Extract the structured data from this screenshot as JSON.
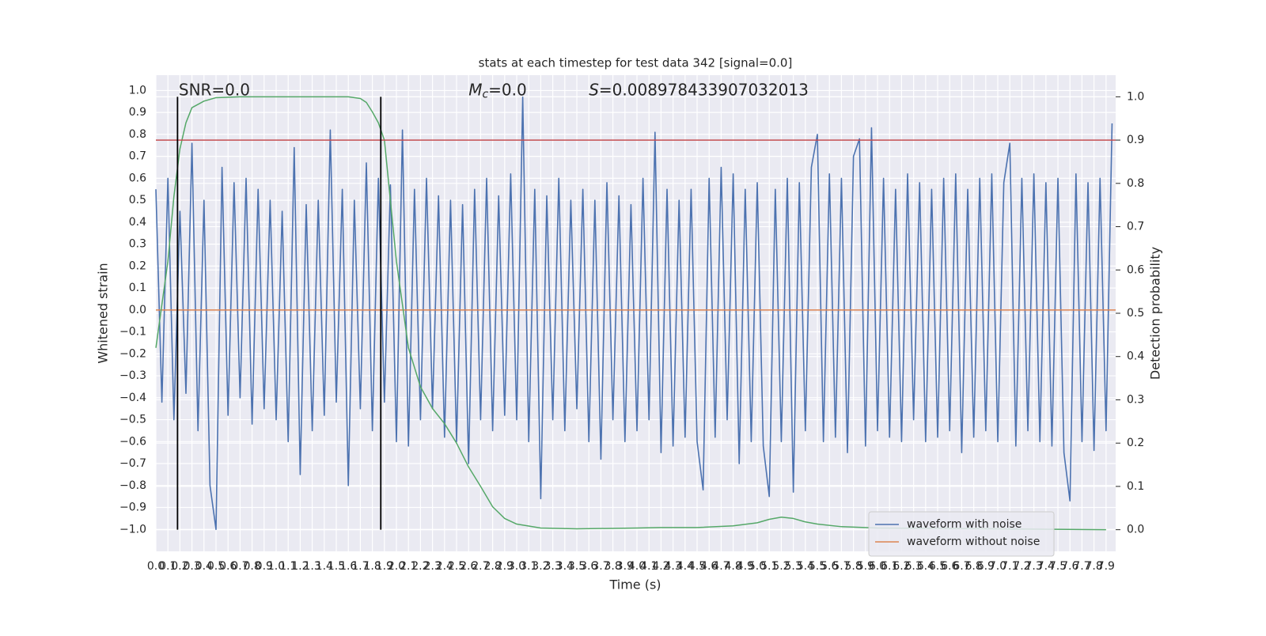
{
  "chart_data": {
    "type": "line",
    "title": "stats at each timestep for test data 342 [signal=0.0]",
    "xlabel": "Time (s)",
    "ylabel": "Whitened strain",
    "y2label": "Detection probability",
    "annotations": [
      {
        "text": "SNR=0.0",
        "x": 0.19,
        "y": 1.0
      },
      {
        "symbol": "M",
        "subscript": "c",
        "text": "=0.0",
        "x": 2.6,
        "y": 1.0
      },
      {
        "symbol": "S",
        "text": "=0.008978433907032013",
        "x": 3.6,
        "y": 1.0
      }
    ],
    "xlim": [
      0,
      7.98
    ],
    "ylim": [
      -1.1,
      1.07
    ],
    "y2lim": [
      -0.05,
      1.05
    ],
    "xticks": [
      {
        "value": 0,
        "label": "0.0"
      },
      0.1,
      0.2,
      0.3,
      0.4,
      0.5,
      0.6,
      0.7,
      0.8,
      0.9,
      {
        "value": 1,
        "label": "1.0"
      },
      1.1,
      1.2,
      1.3,
      1.4,
      1.5,
      1.6,
      1.7,
      1.8,
      1.9,
      {
        "value": 2,
        "label": "2.0"
      },
      2.1,
      2.2,
      2.3,
      2.4,
      2.5,
      2.6,
      2.7,
      2.8,
      2.9,
      {
        "value": 3,
        "label": "3.0"
      },
      3.1,
      3.2,
      3.3,
      3.4,
      3.5,
      3.6,
      3.7,
      3.8,
      3.9,
      {
        "value": 4,
        "label": "4.0"
      },
      4.1,
      4.2,
      4.3,
      4.4,
      4.5,
      4.6,
      4.7,
      4.8,
      4.9,
      {
        "value": 5,
        "label": "5.0"
      },
      5.1,
      5.2,
      5.3,
      5.4,
      5.5,
      5.6,
      5.7,
      5.8,
      5.9,
      {
        "value": 6,
        "label": "6.0"
      },
      6.1,
      6.2,
      6.3,
      6.4,
      6.5,
      6.6,
      6.7,
      6.8,
      6.9,
      {
        "value": 7,
        "label": "7.0"
      },
      7.1,
      7.2,
      7.3,
      7.4,
      7.5,
      7.6,
      7.7,
      7.8,
      7.9
    ],
    "yticks": [
      {
        "value": -1,
        "label": "−1.0"
      },
      {
        "value": -0.9,
        "label": "−0.9"
      },
      {
        "value": -0.8,
        "label": "−0.8"
      },
      {
        "value": -0.7,
        "label": "−0.7"
      },
      {
        "value": -0.6,
        "label": "−0.6"
      },
      {
        "value": -0.5,
        "label": "−0.5"
      },
      {
        "value": -0.4,
        "label": "−0.4"
      },
      {
        "value": -0.3,
        "label": "−0.3"
      },
      {
        "value": -0.2,
        "label": "−0.2"
      },
      {
        "value": -0.1,
        "label": "−0.1"
      },
      {
        "value": 0,
        "label": "0.0"
      },
      0.1,
      0.2,
      0.3,
      0.4,
      0.5,
      0.6,
      0.7,
      0.8,
      0.9,
      {
        "value": 1,
        "label": "1.0"
      }
    ],
    "y2ticks": [
      {
        "value": 0,
        "label": "0.0"
      },
      0.1,
      0.2,
      0.3,
      0.4,
      0.5,
      0.6,
      0.7,
      0.8,
      0.9,
      {
        "value": 1,
        "label": "1.0"
      }
    ],
    "grid": true,
    "legend": "lower right",
    "series": [
      {
        "name": "waveform with noise",
        "color": "#4c72b0",
        "x": [
          0,
          0.05,
          0.1,
          0.15,
          0.2,
          0.25,
          0.3,
          0.35,
          0.4,
          0.45,
          0.5,
          0.55,
          0.6,
          0.65,
          0.7,
          0.75,
          0.8,
          0.85,
          0.9,
          0.95,
          1,
          1.05,
          1.1,
          1.15,
          1.2,
          1.25,
          1.3,
          1.35,
          1.4,
          1.45,
          1.5,
          1.55,
          1.6,
          1.65,
          1.7,
          1.75,
          1.8,
          1.85,
          1.9,
          1.95,
          2,
          2.05,
          2.1,
          2.15,
          2.2,
          2.25,
          2.3,
          2.35,
          2.4,
          2.45,
          2.5,
          2.55,
          2.6,
          2.65,
          2.7,
          2.75,
          2.8,
          2.85,
          2.9,
          2.95,
          3,
          3.05,
          3.1,
          3.15,
          3.2,
          3.25,
          3.3,
          3.35,
          3.4,
          3.45,
          3.5,
          3.55,
          3.6,
          3.65,
          3.7,
          3.75,
          3.8,
          3.85,
          3.9,
          3.95,
          4,
          4.05,
          4.1,
          4.15,
          4.2,
          4.25,
          4.3,
          4.35,
          4.4,
          4.45,
          4.5,
          4.55,
          4.6,
          4.65,
          4.7,
          4.75,
          4.8,
          4.85,
          4.9,
          4.95,
          5,
          5.05,
          5.1,
          5.15,
          5.2,
          5.25,
          5.3,
          5.35,
          5.4,
          5.45,
          5.5,
          5.55,
          5.6,
          5.65,
          5.7,
          5.75,
          5.8,
          5.85,
          5.9,
          5.95,
          6,
          6.05,
          6.1,
          6.15,
          6.2,
          6.25,
          6.3,
          6.35,
          6.4,
          6.45,
          6.5,
          6.55,
          6.6,
          6.65,
          6.7,
          6.75,
          6.8,
          6.85,
          6.9,
          6.95,
          7,
          7.05,
          7.1,
          7.15,
          7.2,
          7.25,
          7.3,
          7.35,
          7.4,
          7.45,
          7.5,
          7.55,
          7.6,
          7.65,
          7.7,
          7.75,
          7.8,
          7.85,
          7.9,
          7.95
        ],
        "values": [
          0.55,
          -0.42,
          0.6,
          -0.5,
          0.45,
          -0.38,
          0.76,
          -0.55,
          0.5,
          -0.8,
          -1.0,
          0.65,
          -0.48,
          0.58,
          -0.4,
          0.6,
          -0.52,
          0.55,
          -0.45,
          0.5,
          -0.5,
          0.45,
          -0.6,
          0.74,
          -0.75,
          0.48,
          -0.55,
          0.5,
          -0.48,
          0.82,
          -0.42,
          0.55,
          -0.8,
          0.5,
          -0.45,
          0.67,
          -0.55,
          0.6,
          -0.42,
          0.57,
          -0.6,
          0.82,
          -0.62,
          0.55,
          -0.5,
          0.6,
          -0.45,
          0.52,
          -0.58,
          0.5,
          -0.6,
          0.48,
          -0.7,
          0.55,
          -0.5,
          0.6,
          -0.55,
          0.52,
          -0.48,
          0.62,
          -0.5,
          0.97,
          -0.6,
          0.55,
          -0.86,
          0.52,
          -0.5,
          0.6,
          -0.55,
          0.5,
          -0.45,
          0.55,
          -0.6,
          0.5,
          -0.68,
          0.58,
          -0.5,
          0.52,
          -0.6,
          0.48,
          -0.55,
          0.6,
          -0.5,
          0.81,
          -0.65,
          0.55,
          -0.62,
          0.5,
          -0.58,
          0.55,
          -0.6,
          -0.82,
          0.6,
          -0.58,
          0.65,
          -0.5,
          0.62,
          -0.7,
          0.55,
          -0.6,
          0.58,
          -0.62,
          -0.85,
          0.55,
          -0.6,
          0.6,
          -0.83,
          0.58,
          -0.55,
          0.65,
          0.8,
          -0.6,
          0.62,
          -0.58,
          0.6,
          -0.65,
          0.7,
          0.78,
          -0.62,
          0.83,
          -0.55,
          0.6,
          -0.58,
          0.55,
          -0.6,
          0.62,
          -0.5,
          0.58,
          -0.6,
          0.55,
          -0.58,
          0.6,
          -0.55,
          0.62,
          -0.65,
          0.55,
          -0.58,
          0.6,
          -0.55,
          0.62,
          -0.6,
          0.58,
          0.76,
          -0.62,
          0.6,
          -0.55,
          0.62,
          -0.6,
          0.58,
          -0.62,
          0.6,
          -0.65,
          -0.87,
          0.62,
          -0.6,
          0.58,
          -0.64,
          0.6,
          -0.55,
          0.85
        ]
      },
      {
        "name": "waveform without noise",
        "color": "#dd8452",
        "x": [
          0,
          7.98
        ],
        "values": [
          0,
          0
        ]
      },
      {
        "color": "#55a868",
        "axis": "y2",
        "x": [
          0,
          0.1,
          0.15,
          0.2,
          0.25,
          0.3,
          0.4,
          0.5,
          0.7,
          1.0,
          1.3,
          1.6,
          1.7,
          1.75,
          1.8,
          1.85,
          1.9,
          2.0,
          2.1,
          2.2,
          2.3,
          2.4,
          2.5,
          2.6,
          2.7,
          2.8,
          2.9,
          3.0,
          3.2,
          3.5,
          4.0,
          4.2,
          4.5,
          4.8,
          5.0,
          5.1,
          5.2,
          5.3,
          5.4,
          5.5,
          5.7,
          6.0,
          7.0,
          7.9
        ],
        "values": [
          0.42,
          0.62,
          0.77,
          0.88,
          0.94,
          0.975,
          0.99,
          0.998,
          1.0,
          1.0,
          1.0,
          1.0,
          0.996,
          0.987,
          0.965,
          0.94,
          0.9,
          0.62,
          0.42,
          0.33,
          0.28,
          0.245,
          0.2,
          0.145,
          0.1,
          0.053,
          0.026,
          0.013,
          0.004,
          0.002,
          0.004,
          0.005,
          0.005,
          0.009,
          0.016,
          0.024,
          0.029,
          0.026,
          0.018,
          0.013,
          0.007,
          0.004,
          0.002,
          0.0
        ]
      }
    ],
    "hlines": [
      {
        "y": 0.9,
        "axis": "y2",
        "color": "#c44e52"
      }
    ],
    "vlines": [
      {
        "x": 0.18,
        "ymin": 0,
        "ymax": 1,
        "axis": "y2",
        "color": "#000000"
      },
      {
        "x": 1.87,
        "ymin": 0,
        "ymax": 1,
        "axis": "y2",
        "color": "#000000"
      }
    ]
  }
}
